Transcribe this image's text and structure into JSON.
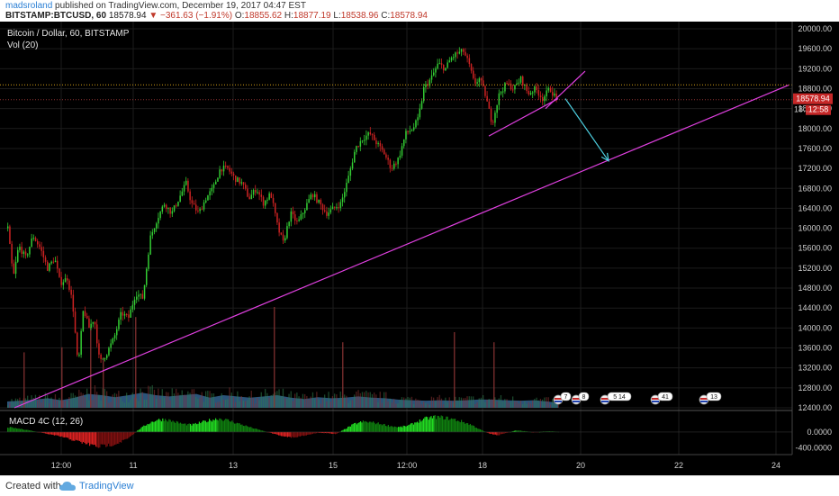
{
  "header": {
    "author": "madsroland",
    "published_text": "published on TradingView.com, December 19, 2017 04:47 EST",
    "symbol": "BITSTAMP:BTCUSD, 60",
    "last": "18578.94",
    "change": "▼ −361.63 (−1.91%)",
    "o_label": "O:",
    "o_value": "18855.62",
    "h_label": "H:",
    "h_value": "18877.19",
    "l_label": "L:",
    "l_value": "18538.96",
    "c_label": "C:",
    "c_value": "18578.94"
  },
  "legend": {
    "title": "Bitcoin / Dollar, 60, BITSTAMP",
    "volume": "Vol (20)",
    "macd": "MACD 4C (12, 26)"
  },
  "price_badge": {
    "value": "18578.94",
    "countdown": "12:58",
    "partial": "18…"
  },
  "events": [
    "7",
    "8",
    "5 14",
    "41",
    "13"
  ],
  "footer": {
    "created": "Created with",
    "brand": "TradingView"
  },
  "colors": {
    "background": "#000000",
    "up": "#33cc33",
    "down": "#cc2222",
    "trendline": "#e040e0",
    "arrow": "#4dd0e1",
    "volume": "#3a6fa0",
    "price_line": "#b34040",
    "high_line": "#d4a017"
  },
  "chart_data": {
    "type": "candlestick",
    "series_name": "BTCUSD",
    "price_axis": {
      "min": 12400,
      "max": 20000,
      "ticks": [
        "20000.00",
        "19600.00",
        "19200.00",
        "18800.00",
        "18400.00",
        "18000.00",
        "17600.00",
        "17200.00",
        "16800.00",
        "16400.00",
        "16000.00",
        "15600.00",
        "15200.00",
        "14800.00",
        "14400.00",
        "14000.00",
        "13600.00",
        "13200.00",
        "12800.00",
        "12400.00"
      ]
    },
    "macd_axis": {
      "ticks": [
        "0.0000",
        "-400.0000"
      ]
    },
    "x_ticks": [
      "12:00",
      "11",
      "13",
      "15",
      "12:00",
      "18",
      "20",
      "22",
      "24"
    ],
    "x_range": [
      0,
      860
    ],
    "price_path": [
      [
        0,
        16000
      ],
      [
        6,
        15000
      ],
      [
        12,
        15650
      ],
      [
        20,
        15400
      ],
      [
        28,
        15850
      ],
      [
        36,
        15600
      ],
      [
        44,
        15200
      ],
      [
        52,
        15400
      ],
      [
        58,
        14900
      ],
      [
        66,
        15000
      ],
      [
        72,
        14500
      ],
      [
        78,
        13200
      ],
      [
        84,
        14400
      ],
      [
        90,
        14000
      ],
      [
        96,
        14200
      ],
      [
        102,
        13300
      ],
      [
        110,
        13500
      ],
      [
        118,
        13800
      ],
      [
        126,
        14300
      ],
      [
        134,
        14200
      ],
      [
        142,
        14700
      ],
      [
        150,
        14600
      ],
      [
        158,
        15800
      ],
      [
        166,
        16200
      ],
      [
        174,
        16500
      ],
      [
        182,
        16300
      ],
      [
        190,
        16600
      ],
      [
        198,
        16900
      ],
      [
        204,
        16500
      ],
      [
        212,
        16300
      ],
      [
        220,
        16600
      ],
      [
        228,
        16800
      ],
      [
        236,
        17200
      ],
      [
        244,
        17200
      ],
      [
        252,
        17000
      ],
      [
        260,
        16900
      ],
      [
        268,
        16600
      ],
      [
        276,
        16800
      ],
      [
        284,
        16500
      ],
      [
        292,
        16700
      ],
      [
        300,
        16000
      ],
      [
        306,
        15700
      ],
      [
        314,
        16300
      ],
      [
        322,
        16100
      ],
      [
        330,
        16400
      ],
      [
        338,
        16700
      ],
      [
        346,
        16500
      ],
      [
        354,
        16300
      ],
      [
        362,
        16400
      ],
      [
        370,
        16500
      ],
      [
        378,
        17000
      ],
      [
        386,
        17600
      ],
      [
        394,
        17800
      ],
      [
        402,
        17900
      ],
      [
        410,
        17700
      ],
      [
        418,
        17500
      ],
      [
        426,
        17200
      ],
      [
        434,
        17400
      ],
      [
        442,
        17900
      ],
      [
        450,
        18000
      ],
      [
        456,
        18200
      ],
      [
        462,
        18800
      ],
      [
        470,
        19000
      ],
      [
        478,
        19300
      ],
      [
        486,
        19200
      ],
      [
        492,
        19400
      ],
      [
        498,
        19500
      ],
      [
        506,
        19550
      ],
      [
        512,
        19300
      ],
      [
        518,
        18900
      ],
      [
        524,
        19000
      ],
      [
        530,
        18700
      ],
      [
        538,
        18100
      ],
      [
        546,
        18700
      ],
      [
        554,
        18900
      ],
      [
        562,
        18800
      ],
      [
        570,
        19000
      ],
      [
        578,
        18700
      ],
      [
        586,
        18800
      ],
      [
        594,
        18600
      ],
      [
        602,
        18800
      ],
      [
        610,
        18580
      ]
    ],
    "volume": [
      [
        0,
        0.25
      ],
      [
        15,
        0.28
      ],
      [
        30,
        0.32
      ],
      [
        45,
        0.38
      ],
      [
        60,
        0.3
      ],
      [
        75,
        0.4
      ],
      [
        90,
        0.55
      ],
      [
        105,
        0.5
      ],
      [
        120,
        0.42
      ],
      [
        135,
        0.5
      ],
      [
        150,
        0.6
      ],
      [
        165,
        0.5
      ],
      [
        180,
        0.45
      ],
      [
        195,
        0.5
      ],
      [
        210,
        0.55
      ],
      [
        225,
        0.4
      ],
      [
        240,
        0.5
      ],
      [
        255,
        0.45
      ],
      [
        270,
        0.4
      ],
      [
        285,
        0.45
      ],
      [
        300,
        0.5
      ],
      [
        315,
        0.4
      ],
      [
        330,
        0.35
      ],
      [
        345,
        0.42
      ],
      [
        360,
        0.38
      ],
      [
        375,
        0.4
      ],
      [
        390,
        0.45
      ],
      [
        405,
        0.4
      ],
      [
        420,
        0.38
      ],
      [
        435,
        0.32
      ],
      [
        450,
        0.3
      ],
      [
        465,
        0.28
      ],
      [
        480,
        0.3
      ],
      [
        495,
        0.28
      ],
      [
        510,
        0.3
      ],
      [
        525,
        0.33
      ],
      [
        540,
        0.32
      ],
      [
        555,
        0.3
      ],
      [
        570,
        0.28
      ],
      [
        585,
        0.3
      ],
      [
        600,
        0.25
      ],
      [
        612,
        0.2
      ]
    ],
    "volume_scale_max": 5000,
    "volume_spikes": [
      [
        18,
        2200
      ],
      [
        60,
        2400
      ],
      [
        92,
        3200
      ],
      [
        106,
        2000
      ],
      [
        142,
        3600
      ],
      [
        296,
        4000
      ],
      [
        372,
        2600
      ],
      [
        496,
        3000
      ],
      [
        540,
        2600
      ]
    ],
    "macd_hist": [
      [
        0,
        120
      ],
      [
        20,
        60
      ],
      [
        40,
        -30
      ],
      [
        60,
        -120
      ],
      [
        80,
        -250
      ],
      [
        100,
        -370
      ],
      [
        120,
        -300
      ],
      [
        135,
        -150
      ],
      [
        145,
        50
      ],
      [
        155,
        200
      ],
      [
        165,
        300
      ],
      [
        175,
        320
      ],
      [
        185,
        260
      ],
      [
        195,
        200
      ],
      [
        205,
        180
      ],
      [
        215,
        240
      ],
      [
        225,
        300
      ],
      [
        235,
        340
      ],
      [
        245,
        290
      ],
      [
        255,
        220
      ],
      [
        265,
        150
      ],
      [
        275,
        80
      ],
      [
        285,
        20
      ],
      [
        295,
        -40
      ],
      [
        305,
        -100
      ],
      [
        315,
        -140
      ],
      [
        325,
        -110
      ],
      [
        335,
        -60
      ],
      [
        345,
        -20
      ],
      [
        355,
        -30
      ],
      [
        365,
        -50
      ],
      [
        375,
        80
      ],
      [
        385,
        200
      ],
      [
        395,
        260
      ],
      [
        405,
        240
      ],
      [
        415,
        200
      ],
      [
        425,
        150
      ],
      [
        435,
        120
      ],
      [
        445,
        160
      ],
      [
        455,
        260
      ],
      [
        465,
        340
      ],
      [
        475,
        380
      ],
      [
        485,
        360
      ],
      [
        495,
        320
      ],
      [
        505,
        260
      ],
      [
        515,
        180
      ],
      [
        525,
        60
      ],
      [
        535,
        -40
      ],
      [
        545,
        -80
      ],
      [
        555,
        -20
      ],
      [
        565,
        40
      ],
      [
        575,
        20
      ],
      [
        585,
        -10
      ],
      [
        595,
        10
      ],
      [
        605,
        15
      ],
      [
        612,
        5
      ]
    ],
    "macd_range": [
      -500,
      450
    ],
    "trendlines": [
      {
        "from": [
          8,
          12400
        ],
        "to": [
          868,
          18870
        ],
        "color": "#e040e0"
      },
      {
        "from": [
          535,
          17850
        ],
        "to": [
          612,
          18600
        ],
        "color": "#e040e0"
      },
      {
        "from": [
          598,
          18400
        ],
        "to": [
          642,
          19150
        ],
        "color": "#e040e0"
      }
    ],
    "arrow": {
      "from": [
        620,
        18600
      ],
      "to": [
        668,
        17350
      ],
      "color": "#4dd0e1"
    },
    "reference_lines": {
      "high": 18877.19,
      "last": 18578.94
    },
    "grid": true
  }
}
